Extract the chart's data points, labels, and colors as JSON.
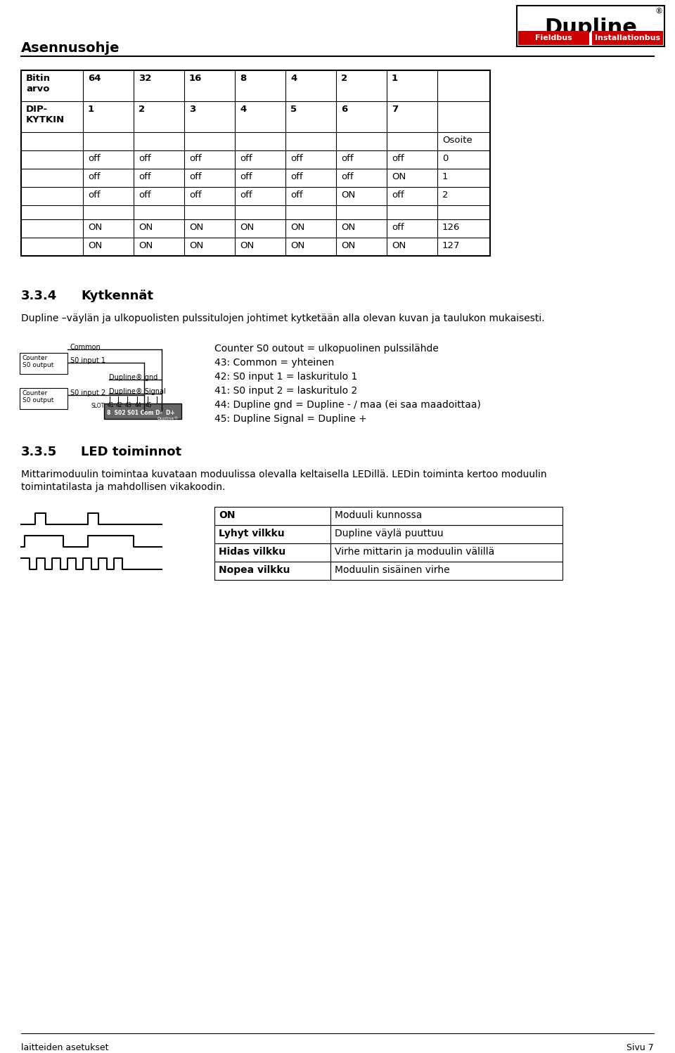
{
  "header_title": "Asennusohje",
  "table1_rows": [
    [
      "Bitin\narvo",
      "64",
      "32",
      "16",
      "8",
      "4",
      "2",
      "1",
      ""
    ],
    [
      "DIP-\nKYTKIN",
      "1",
      "2",
      "3",
      "4",
      "5",
      "6",
      "7",
      ""
    ],
    [
      "",
      "",
      "",
      "",
      "",
      "",
      "",
      "",
      "Osoite"
    ],
    [
      "",
      "off",
      "off",
      "off",
      "off",
      "off",
      "off",
      "off",
      "0"
    ],
    [
      "",
      "off",
      "off",
      "off",
      "off",
      "off",
      "off",
      "ON",
      "1"
    ],
    [
      "",
      "off",
      "off",
      "off",
      "off",
      "off",
      "ON",
      "off",
      "2"
    ],
    [
      "",
      "",
      "",
      "",
      "",
      "",
      "",
      "",
      ""
    ],
    [
      "",
      "ON",
      "ON",
      "ON",
      "ON",
      "ON",
      "ON",
      "off",
      "126"
    ],
    [
      "",
      "ON",
      "ON",
      "ON",
      "ON",
      "ON",
      "ON",
      "ON",
      "127"
    ]
  ],
  "table1_bold_rows": [
    0,
    1
  ],
  "section_334_num": "3.3.4",
  "section_334_title": "Kytkennät",
  "section_334_desc": "Dupline –väylän ja ulkopuolisten pulssitulojen johtimet kytketään alla olevan kuvan ja taulukon mukaisesti.",
  "counter_labels": [
    "Counter S0 outout = ulkopuolinen pulssilähde",
    "43: Common = yhteinen",
    "42: S0 input 1 = laskuritulo 1",
    "41: S0 input 2 = laskuritulo 2",
    "44: Dupline gnd = Dupline - / maa (ei saa maadoittaa)",
    "45: Dupline Signal = Dupline +"
  ],
  "section_335_num": "3.3.5",
  "section_335_title": "LED toiminnot",
  "section_335_desc1": "Mittarimoduulin toimintaa kuvataan moduulissa olevalla keltaisella LEDillä. LEDin toiminta kertoo moduulin",
  "section_335_desc2": "toimintatilasta ja mahdollisen vikakoodin.",
  "led_table": [
    [
      "ON",
      "Moduuli kunnossa"
    ],
    [
      "Lyhyt vilkku",
      "Dupline väylä puuttuu"
    ],
    [
      "Hidas vilkku",
      "Virhe mittarin ja moduulin välillä"
    ],
    [
      "Nopea vilkku",
      "Moduulin sisäinen virhe"
    ]
  ],
  "footer_left": "laitteiden asetukset",
  "footer_right": "Sivu 7",
  "bg_color": "#ffffff"
}
